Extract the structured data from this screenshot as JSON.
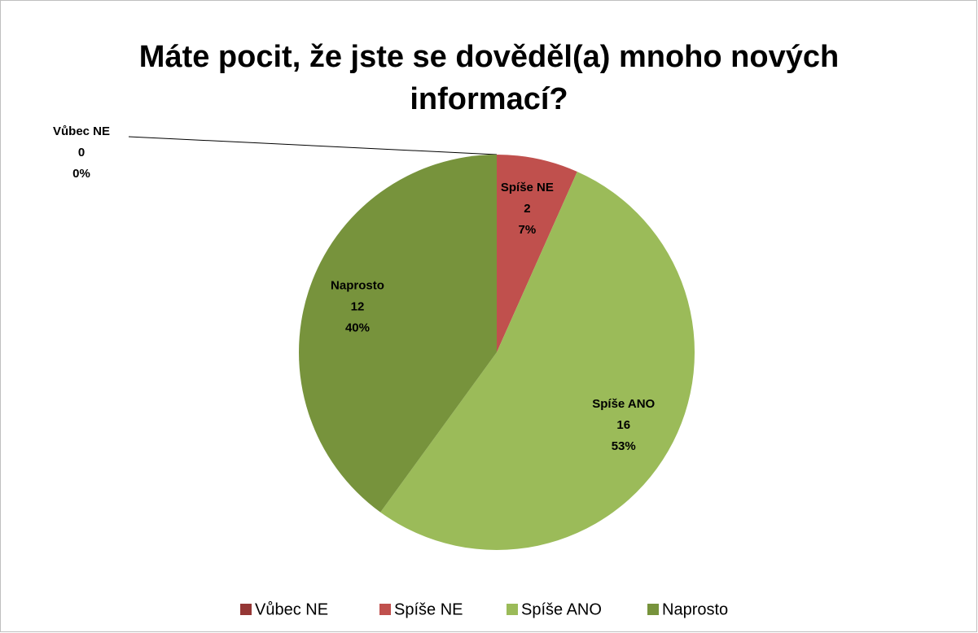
{
  "chart_data": {
    "type": "pie",
    "title": "Máte pocit, že jste se dověděl(a) mnoho nových informací?",
    "categories": [
      "Vůbec NE",
      "Spíše NE",
      "Spíše ANO",
      "Naprosto"
    ],
    "values": [
      0,
      2,
      16,
      12
    ],
    "percent_labels": [
      "0%",
      "7%",
      "53%",
      "40%"
    ],
    "colors": [
      "#953735",
      "#c0504d",
      "#9bbb59",
      "#77933c"
    ],
    "legend": "bottom"
  }
}
